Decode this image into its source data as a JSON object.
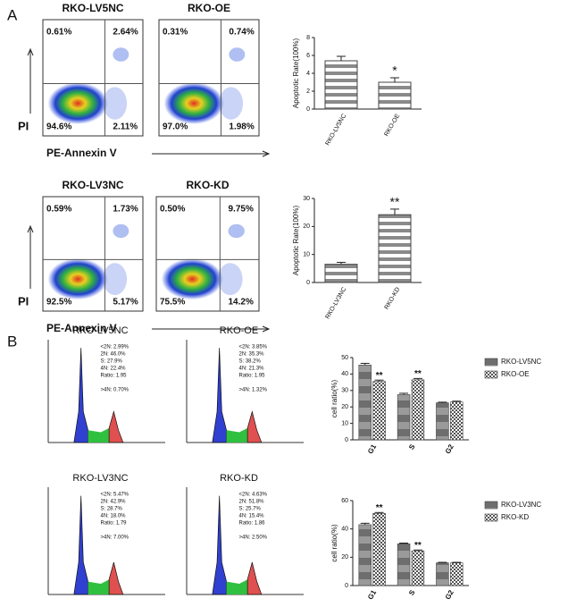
{
  "panel_labels": [
    "A",
    "B"
  ],
  "chart_data": [
    {
      "type": "flow",
      "title": "RKO-LV5NC",
      "ylabel": "PI",
      "xlabel": "PE-Annexin V",
      "quadrants": [
        "0.61%",
        "2.64%",
        "94.6%",
        "2.11%"
      ]
    },
    {
      "type": "flow",
      "title": "RKO-OE",
      "quadrants": [
        "0.31%",
        "0.74%",
        "97.0%",
        "1.98%"
      ]
    },
    {
      "type": "flow",
      "title": "RKO-LV3NC",
      "ylabel": "PI",
      "xlabel": "PE-Annexin V",
      "quadrants": [
        "0.59%",
        "1.73%",
        "92.5%",
        "5.17%"
      ]
    },
    {
      "type": "flow",
      "title": "RKO-KD",
      "quadrants": [
        "0.50%",
        "9.75%",
        "75.5%",
        "14.2%"
      ]
    },
    {
      "type": "bar",
      "ylabel": "Apoptotic Rate(100%)",
      "categories": [
        "RKO-LV5NC",
        "RKO-OE"
      ],
      "values": [
        5.4,
        3.0
      ],
      "errors": [
        0.5,
        0.5
      ],
      "annotations": [
        null,
        "*"
      ],
      "color": "#8a8a8a",
      "pattern": "stripes",
      "ylim": [
        0,
        8
      ],
      "yticks": [
        0,
        2,
        4,
        6,
        8
      ]
    },
    {
      "type": "bar",
      "ylabel": "Apoptotic Rate(100%)",
      "categories": [
        "RKO-LV3NC",
        "RKO-KD"
      ],
      "values": [
        6.5,
        24.2
      ],
      "errors": [
        0.7,
        2.0
      ],
      "annotations": [
        null,
        "**"
      ],
      "color": "#8a8a8a",
      "pattern": "stripes",
      "ylim": [
        0,
        30
      ],
      "yticks": [
        0,
        10,
        20,
        30
      ]
    },
    {
      "type": "cell-cycle",
      "title": "RKO-LV5NC",
      "stats": [
        "<2N: 2.99%",
        "2N: 46.0%",
        "S: 27.9%",
        "4N: 22.4%",
        "Ratio: 1.95",
        ">4N: 0.70%"
      ]
    },
    {
      "type": "cell-cycle",
      "title": "RKO-OE",
      "stats": [
        "<2N: 3.85%",
        "2N: 35.3%",
        "S: 38.2%",
        "4N: 21.3%",
        "Ratio: 1.95",
        ">4N: 1.32%"
      ]
    },
    {
      "type": "cell-cycle",
      "title": "RKO-LV3NC",
      "stats": [
        "<2N: 5.47%",
        "2N: 42.9%",
        "S: 28.7%",
        "4N: 18.0%",
        "Ratio: 1.79",
        ">4N: 7.00%"
      ]
    },
    {
      "type": "cell-cycle",
      "title": "RKO-KD",
      "stats": [
        "<2N: 4.63%",
        "2N: 51.8%",
        "S: 25.7%",
        "4N: 15.4%",
        "Ratio: 1.86",
        ">4N: 2.50%"
      ]
    },
    {
      "type": "grouped-bar",
      "ylabel": "cell ratio(%)",
      "categories": [
        "G1",
        "S",
        "G2"
      ],
      "ylim": [
        0,
        50
      ],
      "yticks": [
        0,
        10,
        20,
        30,
        40,
        50
      ],
      "series": [
        {
          "name": "RKO-LV5NC",
          "color": "#6e6e6e",
          "pattern": "blocks",
          "values": [
            45.5,
            27.5,
            22.5
          ],
          "errors": [
            1.0,
            0.8,
            0.4
          ],
          "annotations": [
            null,
            null,
            null
          ]
        },
        {
          "name": "RKO-OE",
          "color": "#555555",
          "pattern": "check",
          "values": [
            35.5,
            36.5,
            23.0
          ],
          "errors": [
            0.8,
            0.8,
            0.5
          ],
          "annotations": [
            "**",
            "**",
            null
          ]
        }
      ]
    },
    {
      "type": "grouped-bar",
      "ylabel": "cell ratio(%)",
      "categories": [
        "G1",
        "S",
        "G2"
      ],
      "ylim": [
        0,
        60
      ],
      "yticks": [
        0,
        20,
        40,
        60
      ],
      "series": [
        {
          "name": "RKO-LV3NC",
          "color": "#6e6e6e",
          "pattern": "blocks",
          "values": [
            43.0,
            29.5,
            16.0
          ],
          "errors": [
            1.0,
            0.5,
            0.4
          ],
          "annotations": [
            null,
            null,
            null
          ]
        },
        {
          "name": "RKO-KD",
          "color": "#555555",
          "pattern": "check",
          "values": [
            51.0,
            24.5,
            16.0
          ],
          "errors": [
            0.6,
            0.6,
            0.4
          ],
          "annotations": [
            "**",
            "**",
            null
          ]
        }
      ]
    }
  ]
}
